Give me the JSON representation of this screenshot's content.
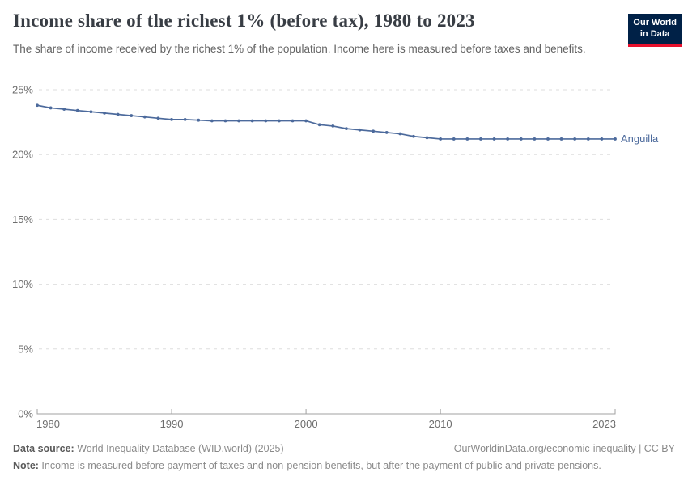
{
  "header": {
    "title": "Income share of the richest 1% (before tax), 1980 to 2023",
    "subtitle": "The share of income received by the richest 1% of the population. Income here is measured before taxes and benefits.",
    "logo": {
      "line1": "Our World",
      "line2": "in Data",
      "bg_color": "#002147",
      "stripe_color": "#e8112d"
    }
  },
  "chart_data": {
    "type": "line",
    "title": "Income share of the richest 1% (before tax), 1980 to 2023",
    "xlabel": "",
    "ylabel": "",
    "xlim": [
      1980,
      2023
    ],
    "ylim": [
      0,
      25
    ],
    "grid": "horizontal-dashed",
    "x_ticks": [
      1980,
      1990,
      2000,
      2010,
      2023
    ],
    "y_ticks": [
      0,
      5,
      10,
      15,
      20,
      25
    ],
    "y_tick_suffix": "%",
    "series": [
      {
        "name": "Anguilla",
        "color": "#4c6a9c",
        "x": [
          1980,
          1981,
          1982,
          1983,
          1984,
          1985,
          1986,
          1987,
          1988,
          1989,
          1990,
          1991,
          1992,
          1993,
          1994,
          1995,
          1996,
          1997,
          1998,
          1999,
          2000,
          2001,
          2002,
          2003,
          2004,
          2005,
          2006,
          2007,
          2008,
          2009,
          2010,
          2011,
          2012,
          2013,
          2014,
          2015,
          2016,
          2017,
          2018,
          2019,
          2020,
          2021,
          2022,
          2023
        ],
        "values": [
          23.8,
          23.6,
          23.5,
          23.4,
          23.3,
          23.2,
          23.1,
          23.0,
          22.9,
          22.8,
          22.7,
          22.7,
          22.65,
          22.6,
          22.6,
          22.6,
          22.6,
          22.6,
          22.6,
          22.6,
          22.6,
          22.3,
          22.2,
          22.0,
          21.9,
          21.8,
          21.7,
          21.6,
          21.4,
          21.3,
          21.2,
          21.2,
          21.2,
          21.2,
          21.2,
          21.2,
          21.2,
          21.2,
          21.2,
          21.2,
          21.2,
          21.2,
          21.2,
          21.2
        ]
      }
    ],
    "legend_position": "end-of-line-label"
  },
  "footer": {
    "datasource_label": "Data source:",
    "datasource_value": " World Inequality Database (WID.world) (2025)",
    "rights": "OurWorldinData.org/economic-inequality | CC BY",
    "note_label": "Note:",
    "note_value": " Income is measured before payment of taxes and non-pension benefits, but after the payment of public and private pensions."
  }
}
